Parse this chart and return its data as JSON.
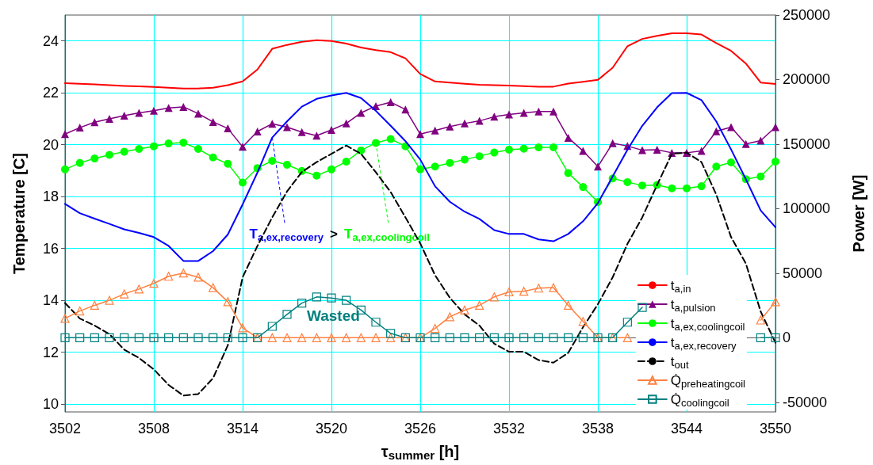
{
  "chart_data": {
    "type": "line",
    "xlabel": "τ$_{summer}$ [h]",
    "ylabel": "Temperature [C]",
    "y2label": "Power [W]",
    "x": [
      3502,
      3503,
      3504,
      3505,
      3506,
      3507,
      3508,
      3509,
      3510,
      3511,
      3512,
      3513,
      3514,
      3515,
      3516,
      3517,
      3518,
      3519,
      3520,
      3521,
      3522,
      3523,
      3524,
      3525,
      3526,
      3527,
      3528,
      3529,
      3530,
      3531,
      3532,
      3533,
      3534,
      3535,
      3536,
      3537,
      3538,
      3539,
      3540,
      3541,
      3542,
      3543,
      3544,
      3545,
      3546,
      3547,
      3548,
      3549,
      3550
    ],
    "xlim": [
      3502,
      3550
    ],
    "xticks": [
      3502,
      3508,
      3514,
      3520,
      3526,
      3532,
      3538,
      3544,
      3550
    ],
    "ylim": [
      9.7,
      25
    ],
    "yticks": [
      10,
      12,
      14,
      16,
      18,
      20,
      22,
      24
    ],
    "y2lim": [
      -57500,
      250000
    ],
    "y2ticks": [
      -50000,
      0,
      50000,
      100000,
      150000,
      200000,
      250000
    ],
    "grid": true,
    "legend": "bottom right",
    "series": [
      {
        "name": "t$_{a,in}$",
        "color": "#ff0000",
        "marker": "none",
        "line_style": "solid",
        "values": [
          22.37,
          22.35,
          22.33,
          22.3,
          22.27,
          22.25,
          22.23,
          22.2,
          22.17,
          22.17,
          22.2,
          22.3,
          22.44,
          22.9,
          23.7,
          23.85,
          23.97,
          24.03,
          24.0,
          23.9,
          23.75,
          23.65,
          23.57,
          23.33,
          22.73,
          22.44,
          22.4,
          22.35,
          22.31,
          22.3,
          22.28,
          22.26,
          22.24,
          22.24,
          22.36,
          22.43,
          22.5,
          22.97,
          23.8,
          24.08,
          24.2,
          24.3,
          24.3,
          24.25,
          23.92,
          23.62,
          23.13,
          22.4,
          22.34
        ]
      },
      {
        "name": "t$_{a,pulsion}$",
        "color": "#800080",
        "marker": "triangle",
        "line_style": "solid",
        "values": [
          20.41,
          20.66,
          20.87,
          21.0,
          21.12,
          21.23,
          21.31,
          21.42,
          21.46,
          21.2,
          20.88,
          20.63,
          19.92,
          20.51,
          20.81,
          20.68,
          20.49,
          20.35,
          20.57,
          20.82,
          21.23,
          21.49,
          21.64,
          21.36,
          20.41,
          20.55,
          20.7,
          20.82,
          20.92,
          21.08,
          21.17,
          21.23,
          21.28,
          21.28,
          20.27,
          19.76,
          19.16,
          20.06,
          19.95,
          19.79,
          19.81,
          19.69,
          19.69,
          19.76,
          20.52,
          20.68,
          20.03,
          20.16,
          20.68
        ]
      },
      {
        "name": "t$_{a,ex,coolingcoil}$",
        "color": "#00ff00",
        "marker": "circle",
        "line_style": "solid",
        "values": [
          19.05,
          19.3,
          19.47,
          19.61,
          19.73,
          19.84,
          19.94,
          20.05,
          20.08,
          19.84,
          19.51,
          19.27,
          18.54,
          19.1,
          19.38,
          19.23,
          18.99,
          18.81,
          19.05,
          19.35,
          19.78,
          20.07,
          20.22,
          19.94,
          19.05,
          19.16,
          19.3,
          19.43,
          19.56,
          19.7,
          19.81,
          19.85,
          19.9,
          19.9,
          18.91,
          18.37,
          17.79,
          18.7,
          18.56,
          18.43,
          18.45,
          18.32,
          18.32,
          18.4,
          19.16,
          19.32,
          18.67,
          18.78,
          19.35
        ]
      },
      {
        "name": "t$_{a,ex,recovery}$",
        "color": "#0000ff",
        "marker": "none",
        "line_style": "solid",
        "values": [
          17.72,
          17.36,
          17.15,
          16.95,
          16.74,
          16.6,
          16.44,
          16.1,
          15.52,
          15.52,
          15.9,
          16.54,
          17.7,
          18.93,
          20.28,
          20.9,
          21.47,
          21.77,
          21.9,
          22.0,
          21.8,
          21.31,
          20.73,
          20.14,
          19.43,
          18.4,
          17.8,
          17.42,
          17.14,
          16.71,
          16.56,
          16.56,
          16.35,
          16.28,
          16.56,
          17.05,
          17.75,
          18.78,
          19.81,
          20.73,
          21.44,
          21.99,
          22.0,
          21.72,
          20.9,
          19.82,
          18.67,
          17.47,
          16.82
        ]
      },
      {
        "name": "t$_{out}$",
        "color": "#000000",
        "marker": "none",
        "line_style": "dashed",
        "values": [
          13.9,
          13.3,
          13.03,
          12.7,
          12.1,
          11.78,
          11.34,
          10.74,
          10.33,
          10.39,
          11.0,
          12.27,
          14.89,
          16.1,
          17.2,
          18.2,
          18.95,
          19.33,
          19.65,
          19.97,
          19.65,
          18.94,
          18.18,
          17.2,
          16.2,
          14.97,
          14.1,
          13.46,
          13.03,
          12.33,
          12.02,
          12.02,
          11.7,
          11.6,
          11.98,
          12.97,
          13.85,
          14.89,
          16.18,
          17.2,
          18.45,
          19.65,
          19.7,
          19.33,
          18.08,
          16.44,
          15.42,
          13.57,
          12.37
        ]
      },
      {
        "name": "Q̇$_{preheatingcoil}$",
        "color": "#ff8040",
        "marker": "triangle",
        "line_style": "solid",
        "axis": "y2",
        "values": [
          15000,
          20700,
          25100,
          29000,
          33900,
          37700,
          42100,
          47600,
          50100,
          46900,
          38800,
          27900,
          7600,
          0,
          0,
          0,
          0,
          0,
          0,
          0,
          0,
          0,
          0,
          0,
          0,
          7200,
          16200,
          21400,
          25100,
          31600,
          35500,
          36000,
          38400,
          38800,
          25100,
          12600,
          0,
          0,
          0,
          null,
          null,
          null,
          null,
          null,
          null,
          null,
          null,
          13700,
          27900
        ]
      },
      {
        "name": "Q̇$_{coolingcoil}$",
        "color": "#008080",
        "marker": "square",
        "line_style": "solid",
        "axis": "y2",
        "values": [
          0,
          0,
          0,
          0,
          0,
          0,
          0,
          0,
          0,
          0,
          0,
          0,
          0,
          0,
          8800,
          18100,
          26800,
          31600,
          30800,
          29000,
          21400,
          12000,
          3400,
          0,
          0,
          0,
          0,
          0,
          0,
          0,
          0,
          0,
          0,
          0,
          0,
          0,
          0,
          0,
          12000,
          23500,
          null,
          null,
          null,
          null,
          null,
          null,
          null,
          0,
          0
        ]
      }
    ],
    "annotations": [
      {
        "text": "T$_{a,ex,recovery}$",
        "x": 3516,
        "y": 20.28
      },
      ">",
      {
        "text": "T$_{a,ex,coolingcoil}$",
        "x": 3523,
        "y": 20.07
      },
      "Wasted"
    ]
  }
}
